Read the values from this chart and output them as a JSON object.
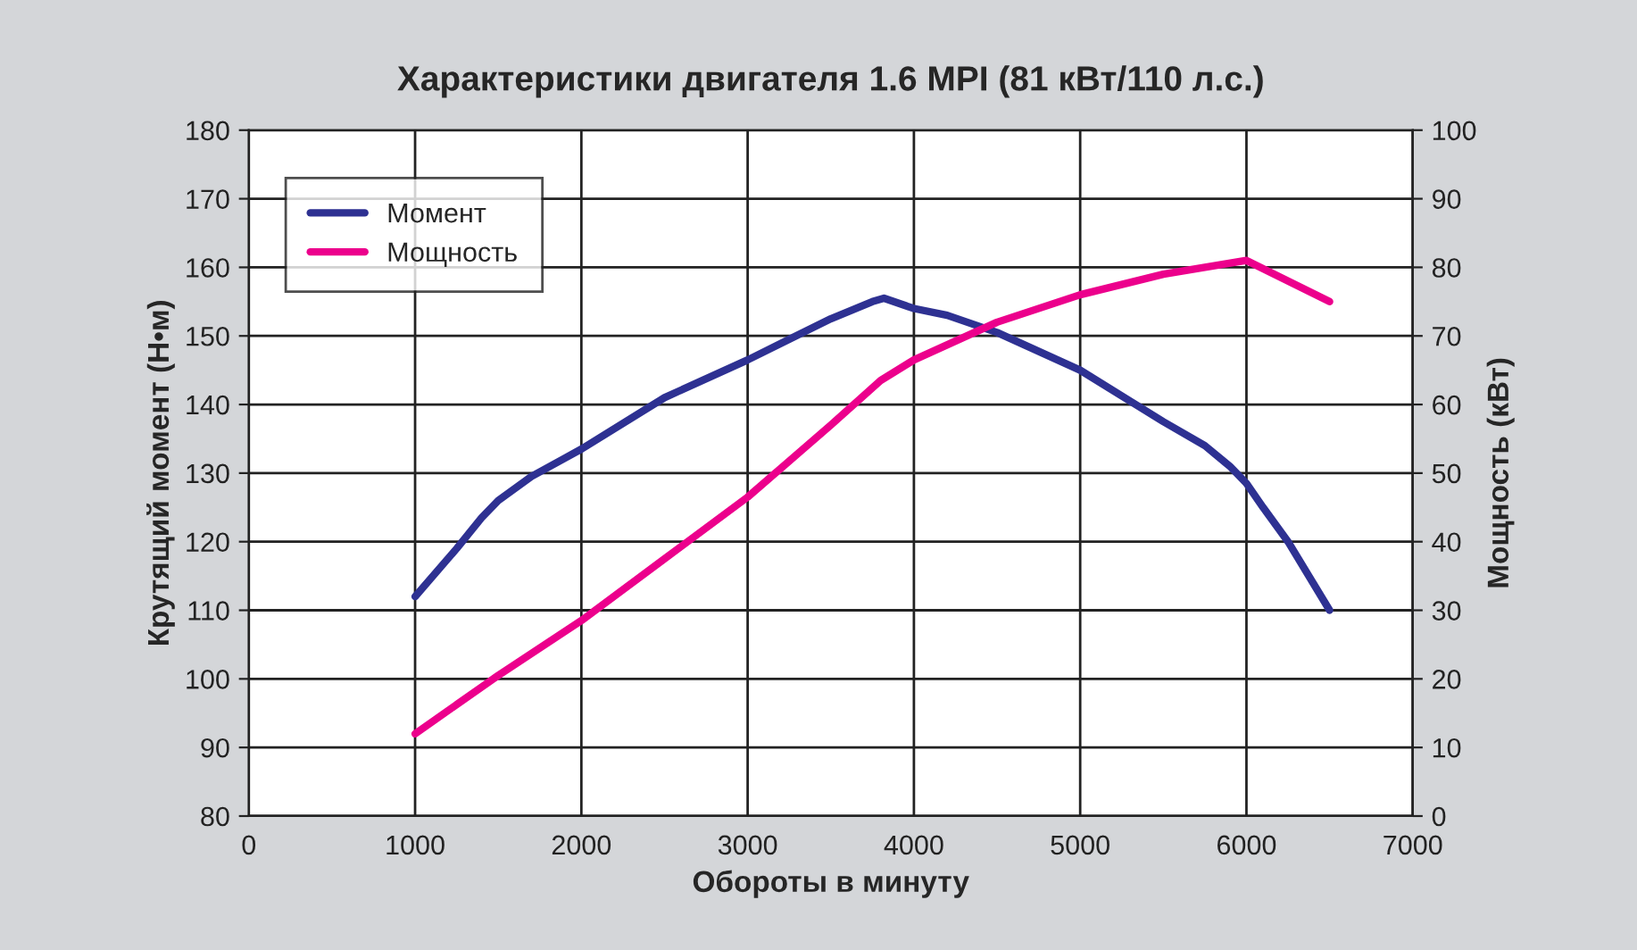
{
  "chart_data": {
    "type": "line",
    "title": "Характеристики двигателя 1.6 MPI (81 кВт/110 л.с.)",
    "xlabel": "Обороты в минуту",
    "ylabel": "Крутящий момент (Н•м)",
    "y2label": "Мощность (кВт)",
    "xlim": [
      0,
      7000
    ],
    "xticks": [
      0,
      1000,
      2000,
      3000,
      4000,
      5000,
      6000,
      7000
    ],
    "ylim": [
      80,
      180
    ],
    "yticks": [
      80,
      90,
      100,
      110,
      120,
      130,
      140,
      150,
      160,
      170,
      180
    ],
    "y2lim": [
      0,
      100
    ],
    "y2ticks": [
      0,
      10,
      20,
      30,
      40,
      50,
      60,
      70,
      80,
      90,
      100
    ],
    "grid": true,
    "legend": "top left",
    "line_style": "solid",
    "series": [
      {
        "name": "Момент",
        "color": "#2e3192",
        "x": [
          1000,
          1250,
          1400,
          1500,
          1700,
          2000,
          2500,
          3000,
          3250,
          3500,
          3750,
          3820,
          4000,
          4200,
          4500,
          5000,
          5500,
          5750,
          5900,
          6000,
          6100,
          6250,
          6500
        ],
        "values": [
          112,
          119,
          123.5,
          126,
          129.5,
          133.5,
          141,
          146.5,
          149.5,
          152.5,
          155,
          155.5,
          154,
          153,
          150.5,
          145,
          137.5,
          134,
          131,
          128.5,
          125,
          120,
          110
        ]
      },
      {
        "name": "Мощность",
        "color": "#ec008c",
        "axis": "y2",
        "x": [
          1000,
          1500,
          2000,
          2500,
          3000,
          3500,
          3800,
          4000,
          4500,
          5000,
          5500,
          6000,
          6500
        ],
        "values": [
          12,
          20.5,
          28.5,
          37.5,
          46.5,
          57,
          63.5,
          66.5,
          72,
          76,
          79,
          81,
          75
        ]
      }
    ]
  }
}
